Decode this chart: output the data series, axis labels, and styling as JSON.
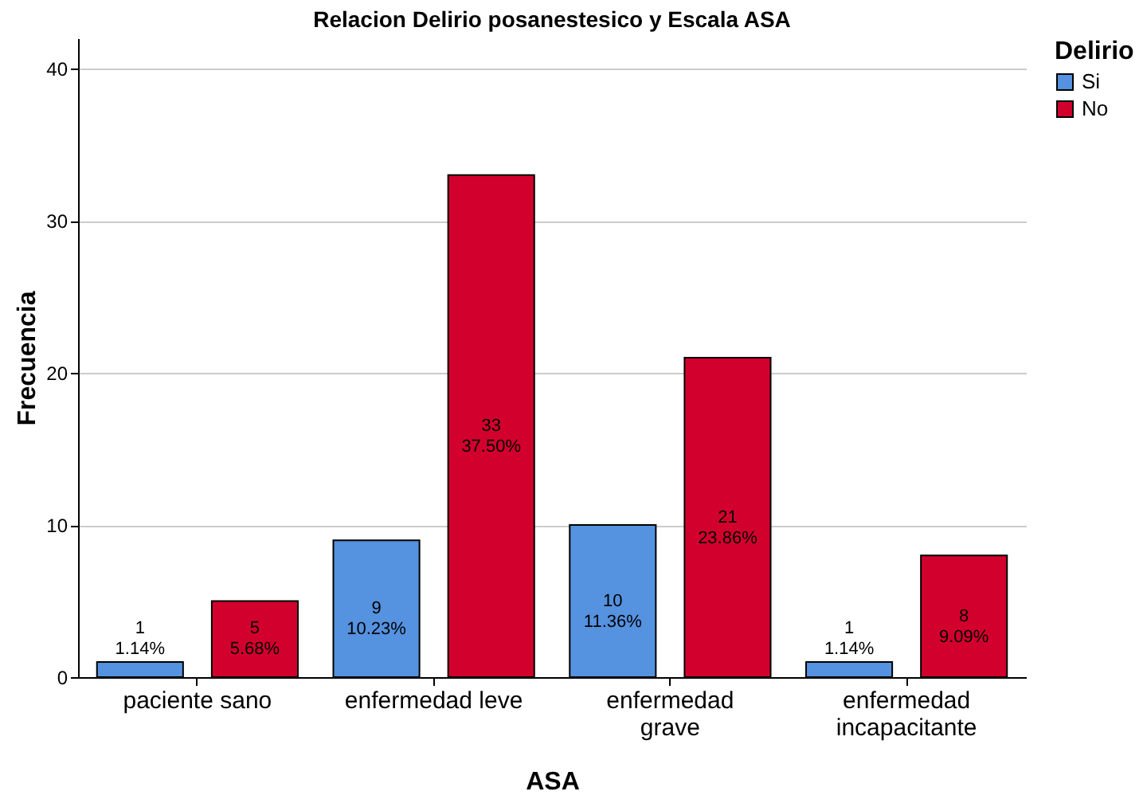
{
  "chart_data": {
    "type": "bar",
    "title": "Relacion Delirio posanestesico y Escala ASA",
    "xlabel": "ASA",
    "ylabel": "Frecuencia",
    "legend_title": "Delirio",
    "categories": [
      "paciente sano",
      "enfermedad leve",
      "enfermedad grave",
      "enfermedad incapacitante"
    ],
    "series": [
      {
        "name": "Si",
        "color": "#5592e0",
        "values": [
          1,
          9,
          10,
          1
        ],
        "value_labels": [
          "1\n1.14%",
          "9\n10.23%",
          "10\n11.36%",
          "1\n1.14%"
        ]
      },
      {
        "name": "No",
        "color": "#d2002d",
        "values": [
          5,
          33,
          21,
          8
        ],
        "value_labels": [
          "5\n5.68%",
          "33\n37.50%",
          "21\n23.86%",
          "8\n9.09%"
        ]
      }
    ],
    "ylim": [
      0,
      42
    ],
    "yticks": [
      0,
      10,
      20,
      30,
      40
    ],
    "grid": "y",
    "legend": "top right"
  }
}
